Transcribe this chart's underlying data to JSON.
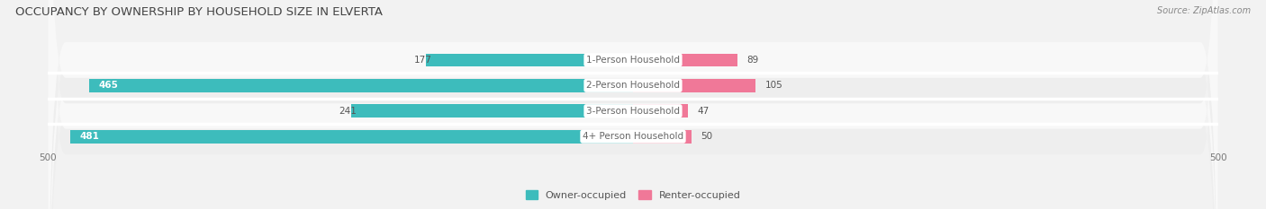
{
  "title": "OCCUPANCY BY OWNERSHIP BY HOUSEHOLD SIZE IN ELVERTA",
  "source": "Source: ZipAtlas.com",
  "categories": [
    "1-Person Household",
    "2-Person Household",
    "3-Person Household",
    "4+ Person Household"
  ],
  "owner_values": [
    177,
    465,
    241,
    481
  ],
  "renter_values": [
    89,
    105,
    47,
    50
  ],
  "owner_color": "#3dbcbc",
  "renter_color": "#f07898",
  "axis_max": 500,
  "bg_color": "#f2f2f2",
  "row_bg_light": "#f8f8f8",
  "row_bg_dark": "#eeeeee",
  "row_pill_color": "#e8e8e8",
  "label_fontsize": 7.5,
  "title_fontsize": 9.5,
  "source_fontsize": 7,
  "legend_fontsize": 8,
  "value_threshold": 300
}
